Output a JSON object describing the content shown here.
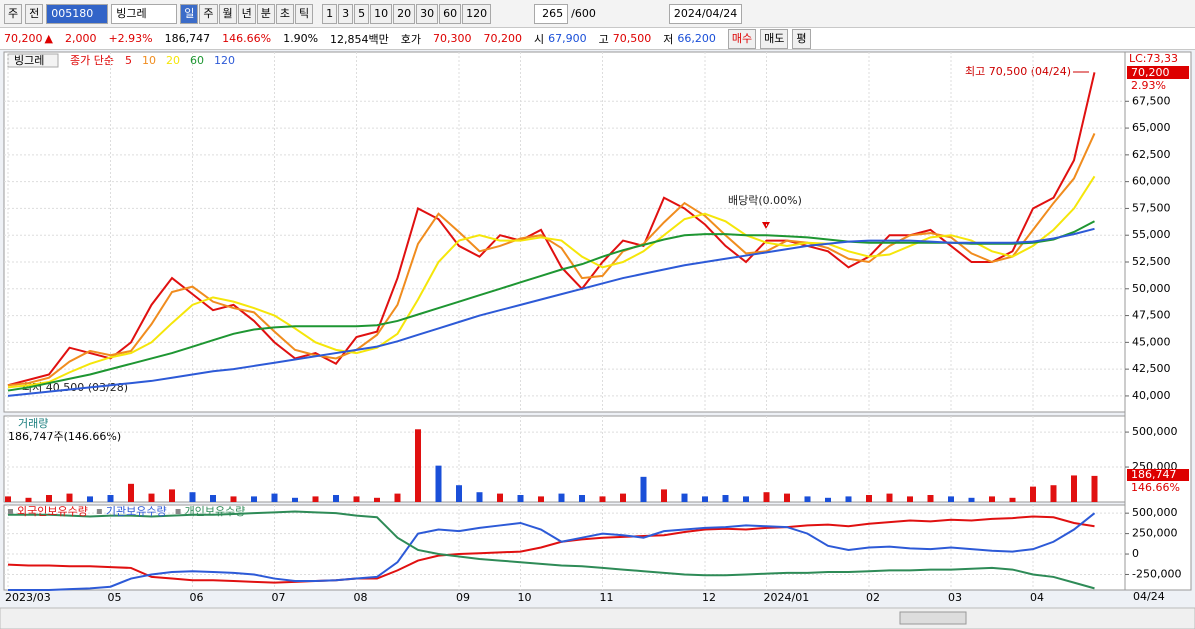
{
  "toolbar": {
    "market": "주",
    "prev": "전",
    "code": "005180",
    "name": "빙그레",
    "periods": [
      "일",
      "주",
      "월",
      "년",
      "분",
      "초",
      "틱"
    ],
    "intervals": [
      "1",
      "3",
      "5",
      "10",
      "20",
      "30",
      "60",
      "120"
    ],
    "count": "265",
    "max": "/600",
    "date": "2024/04/24"
  },
  "quote": {
    "price": "70,200",
    "arrow": "▲",
    "change": "2,000",
    "change_pct": "+2.93%",
    "volume": "186,747",
    "volume_ratio": "146.66%",
    "turnover": "1.90%",
    "amount": "12,854백만",
    "bid_label": "호가",
    "ask": "70,300",
    "bid": "70,200",
    "open_label": "시",
    "open": "67,900",
    "high_label": "고",
    "high": "70,500",
    "low_label": "저",
    "low": "66,200",
    "buy": "매수",
    "sell": "매도",
    "avg": "평"
  },
  "chart_data": [
    {
      "type": "line",
      "title": "빙그레",
      "legend_label": "종가 단순",
      "annotations": {
        "high": "최고 70,500 (04/24)",
        "low": "최저 40,500 (03/28)",
        "dividend": "배당락(0.00%)",
        "lc": "LC:73,33",
        "last": "70,200",
        "last_pct": "2.93%"
      },
      "ylim": [
        38500,
        72100
      ],
      "yticks": [
        {
          "value": 40000,
          "label": "40,000"
        },
        {
          "value": 42500,
          "label": "42,500"
        },
        {
          "value": 45000,
          "label": "45,000"
        },
        {
          "value": 47500,
          "label": "47,500"
        },
        {
          "value": 50000,
          "label": "50,000"
        },
        {
          "value": 52500,
          "label": "52,500"
        },
        {
          "value": 55000,
          "label": "55,000"
        },
        {
          "value": 57500,
          "label": "57,500"
        },
        {
          "value": 60000,
          "label": "60,000"
        },
        {
          "value": 62500,
          "label": "62,500"
        },
        {
          "value": 65000,
          "label": "65,000"
        },
        {
          "value": 67500,
          "label": "67,500"
        }
      ],
      "grid": true,
      "series": [
        {
          "name": "5",
          "color": "#e01010",
          "values": [
            41000,
            41500,
            42000,
            44500,
            44000,
            43500,
            45000,
            48500,
            51000,
            49500,
            48000,
            48500,
            47000,
            45000,
            43500,
            44000,
            43000,
            45500,
            46000,
            51000,
            57500,
            56500,
            54000,
            53000,
            55000,
            54500,
            55500,
            52000,
            50000,
            52500,
            54500,
            54000,
            58500,
            57500,
            56000,
            54000,
            52500,
            54500,
            54500,
            54000,
            53500,
            52000,
            53000,
            55000,
            55000,
            55500,
            54000,
            52500,
            52500,
            53500,
            57500,
            58500,
            62000,
            70200
          ]
        },
        {
          "name": "10",
          "color": "#f08c1e",
          "values": [
            41000,
            41200,
            41700,
            43200,
            44200,
            43800,
            44200,
            46700,
            49700,
            50200,
            48800,
            48200,
            47800,
            46000,
            44300,
            43800,
            43500,
            44300,
            45700,
            48500,
            54200,
            57000,
            55300,
            53500,
            54000,
            54700,
            55000,
            53800,
            51000,
            51200,
            53500,
            54200,
            56200,
            58000,
            56800,
            55000,
            53300,
            53500,
            54500,
            54300,
            53800,
            52800,
            52500,
            54000,
            55000,
            55200,
            54800,
            53300,
            52500,
            53000,
            55500,
            58000,
            60300,
            64500
          ]
        },
        {
          "name": "20",
          "color": "#f5e60a",
          "values": [
            40800,
            41000,
            41300,
            42200,
            43000,
            43600,
            44000,
            45000,
            46800,
            48500,
            49200,
            48800,
            48200,
            47500,
            46300,
            45000,
            44300,
            44000,
            44500,
            45800,
            49000,
            52500,
            54500,
            55000,
            54500,
            54500,
            54800,
            54500,
            53000,
            52000,
            52500,
            53500,
            55000,
            56500,
            57000,
            56300,
            55000,
            54300,
            54000,
            54300,
            54200,
            53500,
            53000,
            53200,
            54000,
            54800,
            55000,
            54500,
            53500,
            53000,
            54000,
            55500,
            57500,
            60500
          ]
        },
        {
          "name": "60",
          "color": "#1e9632",
          "values": [
            40500,
            40800,
            41200,
            41600,
            42000,
            42500,
            43000,
            43500,
            44000,
            44600,
            45200,
            45800,
            46200,
            46400,
            46500,
            46500,
            46500,
            46500,
            46600,
            47000,
            47600,
            48200,
            48800,
            49400,
            50000,
            50600,
            51200,
            51800,
            52300,
            53000,
            53600,
            54100,
            54600,
            55000,
            55100,
            55100,
            55000,
            55000,
            54900,
            54800,
            54600,
            54400,
            54300,
            54300,
            54300,
            54300,
            54300,
            54200,
            54200,
            54200,
            54300,
            54600,
            55300,
            56300
          ]
        },
        {
          "name": "120",
          "color": "#2d5ad7",
          "values": [
            40000,
            40200,
            40400,
            40600,
            40800,
            41000,
            41200,
            41400,
            41700,
            42000,
            42300,
            42500,
            42800,
            43100,
            43400,
            43700,
            44000,
            44300,
            44600,
            45100,
            45700,
            46300,
            46900,
            47500,
            48000,
            48500,
            49000,
            49500,
            50000,
            50500,
            51000,
            51400,
            51800,
            52200,
            52500,
            52800,
            53100,
            53400,
            53700,
            54000,
            54200,
            54400,
            54500,
            54500,
            54500,
            54400,
            54300,
            54300,
            54300,
            54300,
            54400,
            54700,
            55100,
            55600
          ]
        }
      ]
    },
    {
      "type": "bar",
      "title": "거래량",
      "subtitle": "186,747주(146.66%)",
      "annotations": {
        "last": "186,747",
        "last_pct": "146.66%"
      },
      "up_color": "#e01010",
      "down_color": "#1a4fd8",
      "ylim": [
        0,
        615000
      ],
      "yticks": [
        {
          "value": 250000,
          "label": "250,000"
        },
        {
          "value": 500000,
          "label": "500,000"
        }
      ],
      "grid": true,
      "values": [
        40000,
        30000,
        50000,
        60000,
        40000,
        50000,
        130000,
        60000,
        90000,
        70000,
        50000,
        40000,
        40000,
        60000,
        30000,
        40000,
        50000,
        40000,
        30000,
        60000,
        520000,
        260000,
        120000,
        70000,
        60000,
        50000,
        40000,
        60000,
        50000,
        40000,
        60000,
        180000,
        90000,
        60000,
        40000,
        50000,
        40000,
        70000,
        60000,
        40000,
        30000,
        40000,
        50000,
        60000,
        40000,
        50000,
        40000,
        30000,
        40000,
        30000,
        110000,
        120000,
        190000,
        186747
      ]
    },
    {
      "type": "line",
      "end_label": "04/24",
      "categories": [
        "2023/03",
        null,
        null,
        null,
        null,
        "05",
        null,
        null,
        null,
        "06",
        null,
        null,
        null,
        "07",
        null,
        null,
        null,
        "08",
        null,
        null,
        null,
        null,
        "09",
        null,
        null,
        "10",
        null,
        null,
        null,
        "11",
        null,
        null,
        null,
        null,
        "12",
        null,
        null,
        "2024/01",
        null,
        null,
        null,
        null,
        "02",
        null,
        null,
        null,
        "03",
        null,
        null,
        null,
        "04",
        null,
        null,
        null
      ],
      "ylim": [
        -440000,
        600000
      ],
      "yticks": [
        {
          "value": -250000,
          "label": "-250,000"
        },
        0,
        {
          "value": 250000,
          "label": "250,000"
        },
        {
          "value": 500000,
          "label": "500,000"
        }
      ],
      "grid": true,
      "series": [
        {
          "name": "외국인보유수량",
          "color": "#e01010",
          "values": [
            -130000,
            -140000,
            -140000,
            -150000,
            -150000,
            -160000,
            -170000,
            -280000,
            -300000,
            -320000,
            -320000,
            -330000,
            -340000,
            -350000,
            -340000,
            -330000,
            -320000,
            -300000,
            -300000,
            -200000,
            -80000,
            -20000,
            0,
            10000,
            20000,
            30000,
            80000,
            150000,
            180000,
            200000,
            210000,
            220000,
            230000,
            270000,
            300000,
            310000,
            300000,
            320000,
            330000,
            350000,
            360000,
            340000,
            370000,
            390000,
            410000,
            400000,
            420000,
            410000,
            430000,
            440000,
            460000,
            450000,
            380000,
            340000
          ]
        },
        {
          "name": "기관보유수량",
          "color": "#2d5ad7",
          "values": [
            -440000,
            -440000,
            -440000,
            -430000,
            -420000,
            -400000,
            -300000,
            -250000,
            -220000,
            -210000,
            -220000,
            -230000,
            -250000,
            -300000,
            -330000,
            -330000,
            -320000,
            -300000,
            -280000,
            -100000,
            250000,
            300000,
            280000,
            320000,
            350000,
            380000,
            300000,
            150000,
            200000,
            250000,
            230000,
            200000,
            280000,
            300000,
            320000,
            330000,
            350000,
            340000,
            330000,
            250000,
            100000,
            50000,
            80000,
            90000,
            70000,
            60000,
            80000,
            60000,
            40000,
            30000,
            60000,
            150000,
            300000,
            500000
          ]
        },
        {
          "name": "개인보유수량",
          "color": "#2e8b57",
          "values": [
            480000,
            480000,
            480000,
            470000,
            460000,
            470000,
            470000,
            460000,
            470000,
            480000,
            480000,
            490000,
            500000,
            510000,
            520000,
            510000,
            500000,
            470000,
            450000,
            200000,
            50000,
            0,
            -30000,
            -60000,
            -80000,
            -100000,
            -120000,
            -140000,
            -150000,
            -170000,
            -190000,
            -210000,
            -230000,
            -250000,
            -260000,
            -260000,
            -250000,
            -240000,
            -230000,
            -230000,
            -220000,
            -220000,
            -210000,
            -200000,
            -200000,
            -190000,
            -190000,
            -180000,
            -170000,
            -190000,
            -250000,
            -280000,
            -350000,
            -420000
          ]
        }
      ]
    }
  ]
}
